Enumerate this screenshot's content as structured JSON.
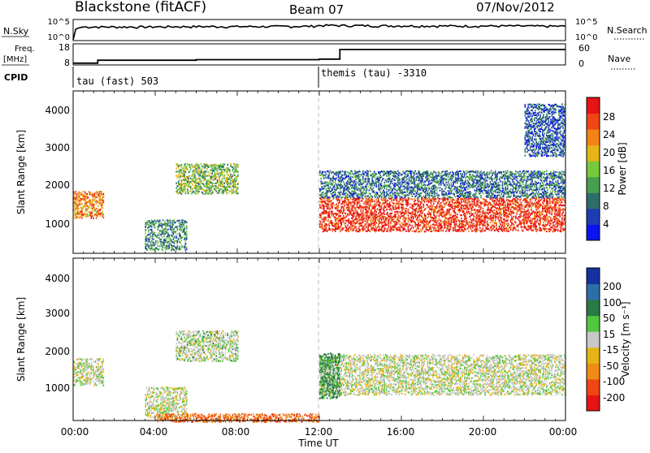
{
  "header": {
    "station": "Blackstone (fitACF)",
    "beam": "Beam 07",
    "date": "07/Nov/2012"
  },
  "noise_panel": {
    "left_label": "N.Sky",
    "left_ticks": [
      "10^5",
      "10^0"
    ],
    "right_label": "N.Search",
    "right_ticks": [
      "10^5",
      "10^0"
    ]
  },
  "freq_panel": {
    "left_label_1": "Freq.",
    "left_label_2": "[MHz]",
    "left_ticks": [
      "18",
      "8"
    ],
    "right_label": "Nave",
    "right_ticks": [
      "60",
      "0"
    ],
    "cpid_label": "CPID"
  },
  "cpid": [
    {
      "label": "tau (fast) 503"
    },
    {
      "label": "themis (tau) -3310"
    }
  ],
  "xaxis": {
    "ticks": [
      "00:00",
      "04:00",
      "08:00",
      "12:00",
      "16:00",
      "20:00",
      "00:00"
    ],
    "label": "Time UT"
  },
  "power_panel": {
    "ylabel": "Slant Range [km]",
    "yticks": [
      "1000",
      "2000",
      "3000",
      "4000"
    ],
    "cbar_label": "Power [dB]",
    "cbar_ticks": [
      "4",
      "8",
      "12",
      "16",
      "20",
      "24",
      "28"
    ],
    "cbar_colors": [
      "#0a14f0",
      "#1e3cb4",
      "#2e6e6a",
      "#46a050",
      "#78c83c",
      "#e6b414",
      "#f58214",
      "#f04614",
      "#e61414"
    ]
  },
  "velocity_panel": {
    "ylabel": "Slant Range [km]",
    "yticks": [
      "1000",
      "2000",
      "3000",
      "4000"
    ],
    "cbar_label": "Velocity [m s⁻¹]",
    "cbar_ticks": [
      "200",
      "100",
      "50",
      "15",
      "-15",
      "-50",
      "-100",
      "-200"
    ],
    "cbar_colors": [
      "#1432a0",
      "#2c6ea8",
      "#287a46",
      "#50c83c",
      "#c8c8c8",
      "#e6b414",
      "#f08c14",
      "#f04614",
      "#e61414"
    ]
  },
  "chart_data": [
    {
      "type": "line",
      "title": "N.Sky",
      "x_range": [
        "00:00",
        "24:00"
      ],
      "series": [
        {
          "name": "N.Sky",
          "x": [
            0.0,
            0.5,
            3.0,
            6.0,
            9.0,
            11.5,
            12.2,
            15.0,
            18.0,
            21.0,
            24.0
          ],
          "values": [
            1,
            2000,
            2000,
            2500,
            2500,
            3000,
            5000,
            4000,
            3500,
            3500,
            3000
          ]
        }
      ]
    },
    {
      "type": "line",
      "title": "Freq.",
      "x_range": [
        "00:00",
        "24:00"
      ],
      "ylim": [
        8,
        18
      ],
      "series": [
        {
          "name": "Freq.",
          "x": [
            0.0,
            1.2,
            6.0,
            12.0,
            13.0,
            24.0
          ],
          "values": [
            8.5,
            10.0,
            10.3,
            10.6,
            15.5,
            15.5
          ]
        }
      ]
    },
    {
      "type": "heatmap",
      "title": "Power [dB]",
      "x_range": [
        "00:00",
        "24:00"
      ],
      "ylim": [
        180,
        4500
      ],
      "colorbar_range": [
        0,
        30
      ],
      "regions": [
        {
          "t0": 0.0,
          "t1": 1.5,
          "r0": 1150,
          "r1": 1850,
          "value": 22
        },
        {
          "t0": 5.0,
          "t1": 8.0,
          "r0": 1800,
          "r1": 2600,
          "value": 14
        },
        {
          "t0": 3.5,
          "t1": 5.5,
          "r0": 300,
          "r1": 1100,
          "value": 10
        },
        {
          "t0": 12.0,
          "t1": 24.0,
          "r0": 800,
          "r1": 1700,
          "value": 27
        },
        {
          "t0": 12.0,
          "t1": 24.0,
          "r0": 1700,
          "r1": 2400,
          "value": 8
        },
        {
          "t0": 22.0,
          "t1": 24.0,
          "r0": 2800,
          "r1": 4200,
          "value": 6
        }
      ]
    },
    {
      "type": "heatmap",
      "title": "Velocity [m s⁻¹]",
      "x_range": [
        "00:00",
        "24:00"
      ],
      "ylim": [
        180,
        4500
      ],
      "colorbar_range": [
        -250,
        250
      ],
      "regions": [
        {
          "t0": 0.0,
          "t1": 1.5,
          "r0": 1150,
          "r1": 1850,
          "value": 0
        },
        {
          "t0": 5.0,
          "t1": 8.0,
          "r0": 1800,
          "r1": 2600,
          "value": 5
        },
        {
          "t0": 3.5,
          "t1": 5.5,
          "r0": 300,
          "r1": 1100,
          "value": 0
        },
        {
          "t0": 4.0,
          "t1": 12.0,
          "r0": 180,
          "r1": 400,
          "value": -80
        },
        {
          "t0": 12.0,
          "t1": 24.0,
          "r0": 900,
          "r1": 2000,
          "value": 0
        },
        {
          "t0": 12.0,
          "t1": 13.0,
          "r0": 800,
          "r1": 2000,
          "value": 40
        }
      ]
    }
  ]
}
